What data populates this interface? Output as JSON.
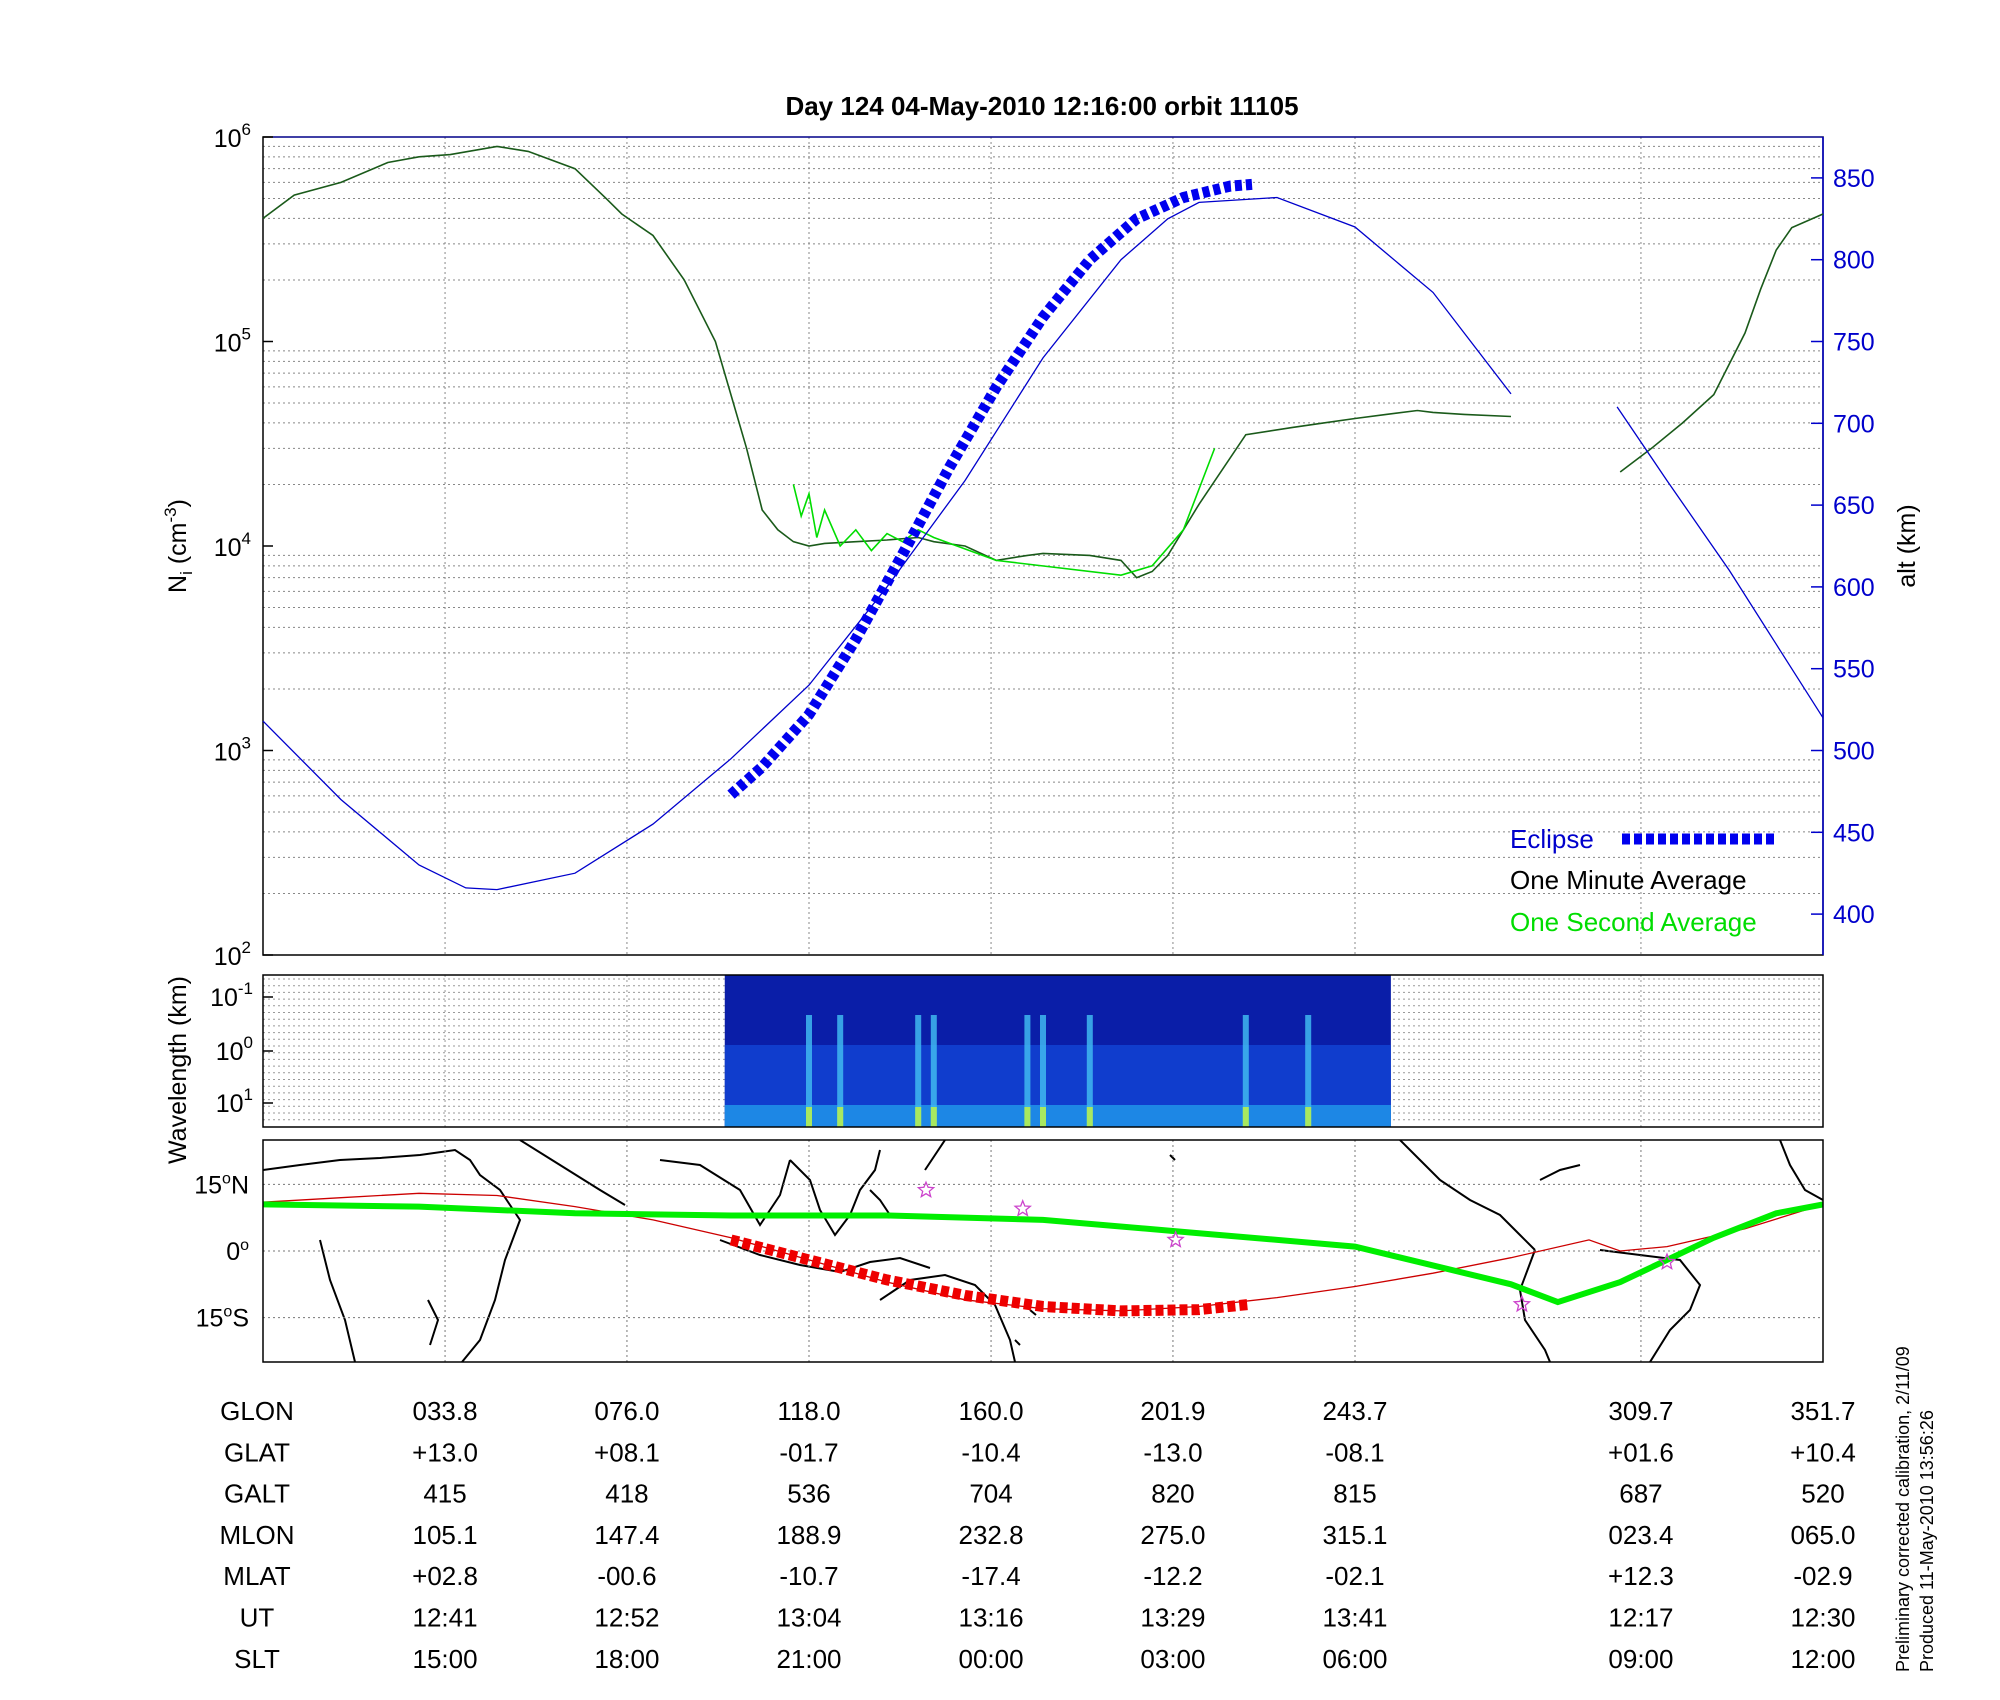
{
  "title": "Day 124  04-May-2010 12:16:00   orbit 11105",
  "colors": {
    "altitude": "#0000cc",
    "eclipse": "#0000ee",
    "one_minute": "#000000",
    "one_second": "#00dd00",
    "track": "#00ee00",
    "ground_track": "#cc0000",
    "eclipse_track": "#ee0000",
    "star": "#cc44cc"
  },
  "chart_data": [
    {
      "type": "line",
      "name": "ion-density-and-altitude",
      "ylabel": "N_i (cm^-3)",
      "y_scale": "log",
      "ylim": [
        100,
        1000000
      ],
      "y_ticks": [
        {
          "label_base": "10",
          "label_exp": "2",
          "value": 100
        },
        {
          "label_base": "10",
          "label_exp": "3",
          "value": 1000
        },
        {
          "label_base": "10",
          "label_exp": "4",
          "value": 10000
        },
        {
          "label_base": "10",
          "label_exp": "5",
          "value": 100000
        },
        {
          "label_base": "10",
          "label_exp": "6",
          "value": 1000000
        }
      ],
      "y2label": "alt (km)",
      "y2lim": [
        375,
        875
      ],
      "y2_ticks": [
        "400",
        "450",
        "500",
        "550",
        "600",
        "650",
        "700",
        "750",
        "800",
        "850"
      ],
      "xlim": [
        0,
        1
      ],
      "x_grid": [
        0.1167,
        0.2333,
        0.35,
        0.4667,
        0.5833,
        0.7,
        0.8833,
        1.0
      ],
      "grid": true,
      "legend": {
        "position": "bottom-right",
        "entries": [
          "Eclipse",
          "One Minute Average",
          "One Second Average"
        ]
      },
      "series": [
        {
          "name": "One Minute Average",
          "x": [
            0,
            0.02,
            0.05,
            0.08,
            0.1,
            0.12,
            0.15,
            0.17,
            0.2,
            0.22,
            0.23,
            0.25,
            0.27,
            0.29,
            0.31,
            0.32,
            0.33,
            0.34,
            0.35,
            0.36,
            0.38,
            0.4,
            0.42,
            0.43,
            0.45,
            0.47,
            0.49,
            0.5,
            0.53,
            0.55,
            0.56,
            0.57,
            0.58,
            0.6,
            0.63,
            0.66,
            0.68,
            0.7,
            0.72,
            0.74,
            0.75,
            0.77,
            0.8
          ],
          "values": [
            400000,
            520000,
            600000,
            750000,
            800000,
            820000,
            900000,
            850000,
            700000,
            500000,
            420000,
            330000,
            200000,
            100000,
            30000,
            15000,
            12000,
            10500,
            10000,
            10300,
            10500,
            10700,
            11000,
            10500,
            10000,
            8500,
            9000,
            9200,
            9000,
            8500,
            7000,
            7500,
            9000,
            16000,
            35000,
            38000,
            40000,
            42000,
            44000,
            46000,
            45000,
            44000,
            43000
          ]
        },
        {
          "name": "One Minute Average (segment 2)",
          "x": [
            0.87,
            0.89,
            0.91,
            0.93,
            0.95,
            0.96,
            0.97,
            0.98,
            1.0
          ],
          "values": [
            23000,
            30000,
            40000,
            55000,
            110000,
            180000,
            280000,
            360000,
            420000
          ]
        },
        {
          "name": "One Second Average",
          "x": [
            0.34,
            0.345,
            0.35,
            0.355,
            0.36,
            0.37,
            0.38,
            0.39,
            0.4,
            0.41,
            0.42,
            0.43,
            0.47,
            0.55,
            0.57,
            0.59,
            0.61
          ],
          "values": [
            20000,
            14000,
            18000,
            11000,
            15000,
            10000,
            12000,
            9500,
            11500,
            10500,
            12000,
            11000,
            8500,
            7200,
            8000,
            12000,
            30000
          ]
        },
        {
          "name": "Altitude",
          "axis": "right",
          "x": [
            0,
            0.05,
            0.1,
            0.13,
            0.15,
            0.2,
            0.25,
            0.3,
            0.35,
            0.4,
            0.45,
            0.5,
            0.55,
            0.58,
            0.6,
            0.65,
            0.7,
            0.75,
            0.8
          ],
          "values": [
            518,
            470,
            430,
            416,
            415,
            425,
            455,
            495,
            540,
            600,
            665,
            740,
            800,
            825,
            835,
            838,
            820,
            780,
            718
          ]
        },
        {
          "name": "Altitude (segment 2)",
          "x": [
            0.868,
            0.9,
            0.94,
            0.97,
            1.0
          ],
          "values": [
            710,
            665,
            610,
            565,
            520
          ]
        },
        {
          "name": "Eclipse",
          "axis": "right",
          "x": [
            0.3,
            0.32,
            0.35,
            0.38,
            0.41,
            0.44,
            0.47,
            0.5,
            0.53,
            0.56,
            0.59,
            0.62,
            0.634
          ],
          "values": [
            473,
            490,
            522,
            568,
            620,
            673,
            722,
            765,
            800,
            825,
            838,
            845,
            846
          ]
        }
      ]
    },
    {
      "type": "heatmap",
      "name": "wavelength-spectrogram",
      "ylabel": "Wavelength (km)",
      "y_ticks": [
        {
          "label_base": "10",
          "label_exp": "-1"
        },
        {
          "label_base": "10",
          "label_exp": "0"
        },
        {
          "label_base": "10",
          "label_exp": "1"
        }
      ],
      "x_extent": [
        0.296,
        0.723
      ],
      "bright_x": [
        0.35,
        0.37,
        0.42,
        0.43,
        0.49,
        0.5,
        0.53,
        0.63,
        0.67
      ],
      "xlim": [
        0,
        1
      ]
    },
    {
      "type": "scatter",
      "name": "ground-track-map",
      "y_ticks": [
        {
          "deg": "15",
          "suffix": "N",
          "value": 15
        },
        {
          "deg": "0",
          "suffix": "",
          "value": 0
        },
        {
          "deg": "15",
          "suffix": "S",
          "value": -15
        }
      ],
      "ylim": [
        -25,
        25
      ],
      "xlim": [
        0,
        1
      ],
      "magnetic_equator": {
        "x": [
          0,
          0.1,
          0.2,
          0.3,
          0.4,
          0.5,
          0.6,
          0.7,
          0.8,
          0.83,
          0.87,
          0.9,
          0.93,
          0.97,
          1.0
        ],
        "values": [
          10.5,
          10,
          8.5,
          8,
          8,
          7,
          4,
          1,
          -7.5,
          -11.5,
          -7,
          -2,
          3,
          8.5,
          10.5
        ]
      },
      "ground_track": {
        "x": [
          0,
          0.05,
          0.1,
          0.15,
          0.2,
          0.25,
          0.3,
          0.35,
          0.4,
          0.45,
          0.5,
          0.55,
          0.6,
          0.65,
          0.7,
          0.75,
          0.8,
          0.85,
          0.87,
          0.9,
          0.95,
          1.0
        ],
        "values": [
          11,
          12,
          13,
          12.5,
          10,
          7,
          3,
          -2,
          -7,
          -11,
          -13,
          -13.5,
          -12.5,
          -10.5,
          -8,
          -5,
          -1.5,
          2.5,
          0,
          1,
          5,
          10.5
        ]
      },
      "eclipse_track": {
        "x": [
          0.3,
          0.35,
          0.4,
          0.45,
          0.5,
          0.55,
          0.6,
          0.633
        ],
        "values": [
          2.5,
          -2,
          -6.5,
          -10,
          -12.5,
          -13.5,
          -13.2,
          -12
        ]
      },
      "stars": {
        "x": [
          0.425,
          0.487,
          0.585,
          0.807,
          0.9
        ],
        "values": [
          13.7,
          9.5,
          2.5,
          -12,
          -2.5
        ]
      }
    }
  ],
  "table": {
    "row_labels": [
      "GLON",
      "GLAT",
      "GALT",
      "MLON",
      "MLAT",
      "UT",
      "SLT"
    ],
    "x": [
      0.1167,
      0.2333,
      0.35,
      0.4667,
      0.5833,
      0.7,
      0.8833,
      1.0
    ],
    "rows": [
      [
        "033.8",
        "076.0",
        "118.0",
        "160.0",
        "201.9",
        "243.7",
        "309.7",
        "351.7"
      ],
      [
        "+13.0",
        "+08.1",
        "-01.7",
        "-10.4",
        "-13.0",
        "-08.1",
        "+01.6",
        "+10.4"
      ],
      [
        "415",
        "418",
        "536",
        "704",
        "820",
        "815",
        "687",
        "520"
      ],
      [
        "105.1",
        "147.4",
        "188.9",
        "232.8",
        "275.0",
        "315.1",
        "023.4",
        "065.0"
      ],
      [
        "+02.8",
        "-00.6",
        "-10.7",
        "-17.4",
        "-12.2",
        "-02.1",
        "+12.3",
        "-02.9"
      ],
      [
        "12:41",
        "12:52",
        "13:04",
        "13:16",
        "13:29",
        "13:41",
        "12:17",
        "12:30"
      ],
      [
        "15:00",
        "18:00",
        "21:00",
        "00:00",
        "03:00",
        "06:00",
        "09:00",
        "12:00"
      ]
    ]
  },
  "footnote": {
    "line1": "Preliminary corrected calibration, 2/11/09",
    "line2": "Produced 11-May-2010 13:56:26"
  }
}
